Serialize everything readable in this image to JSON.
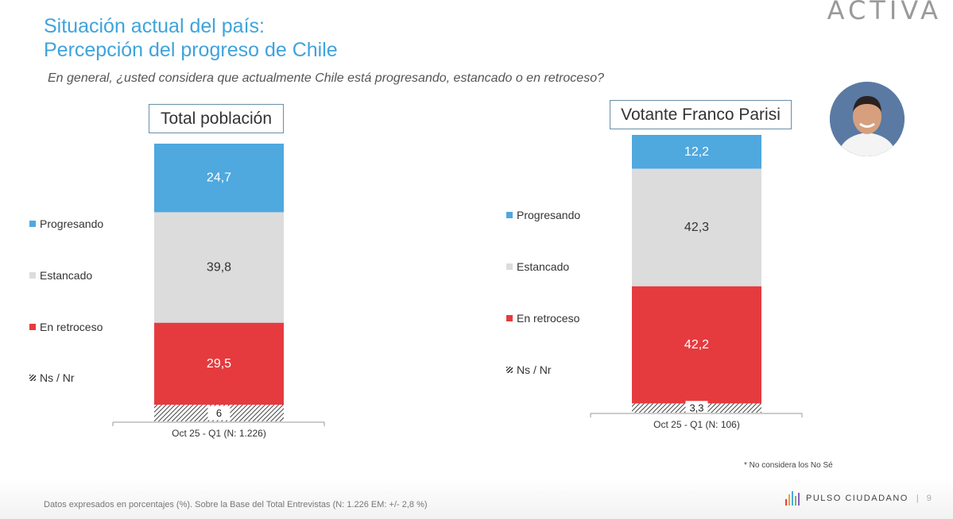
{
  "brand": "ACTIVA",
  "title": {
    "line1": "Situación actual del país:",
    "line2": "Percepción del progreso de Chile"
  },
  "question": "En general, ¿usted considera que actualmente Chile está progresando, estancado o en retroceso?",
  "colors": {
    "progresando": "#4fa8de",
    "estancado": "#dcdcdc",
    "retroceso": "#e53b3e",
    "nsnr": "hatch",
    "title": "#3fa3dc"
  },
  "chart_data": [
    {
      "type": "bar",
      "stacked": true,
      "title": "Total población",
      "categories": [
        "Oct 25 - Q1 (N: 1.226)"
      ],
      "series": [
        {
          "name": "Progresando",
          "values": [
            24.7
          ],
          "label": "24,7"
        },
        {
          "name": "Estancado",
          "values": [
            39.8
          ],
          "label": "39,8"
        },
        {
          "name": "En retroceso",
          "values": [
            29.5
          ],
          "label": "29,5"
        },
        {
          "name": "Ns / Nr",
          "values": [
            6
          ],
          "label": "6"
        }
      ],
      "legend_order": [
        "Progresando",
        "Estancado",
        "En retroceso",
        "Ns / Nr"
      ],
      "legend_position": "left",
      "grid": false
    },
    {
      "type": "bar",
      "stacked": true,
      "title": "Votante Franco Parisi",
      "categories": [
        "Oct 25 - Q1 (N: 106)"
      ],
      "series": [
        {
          "name": "Progresando",
          "values": [
            12.2
          ],
          "label": "12,2"
        },
        {
          "name": "Estancado",
          "values": [
            42.3
          ],
          "label": "42,3"
        },
        {
          "name": "En retroceso",
          "values": [
            42.2
          ],
          "label": "42,2"
        },
        {
          "name": "Ns / Nr",
          "values": [
            3.3
          ],
          "label": "3,3"
        }
      ],
      "legend_order": [
        "Progresando",
        "Estancado",
        "En retroceso",
        "Ns / Nr"
      ],
      "legend_position": "left",
      "grid": false
    }
  ],
  "footnote": "* No considera los No Sé",
  "footer": {
    "text": "Datos expresados en porcentajes (%). Sobre la Base del Total Entrevistas (N: 1.226  EM: +/- 2,8 %)",
    "brand": "PULSO CIUDADANO",
    "separator": "|",
    "page": "9"
  }
}
